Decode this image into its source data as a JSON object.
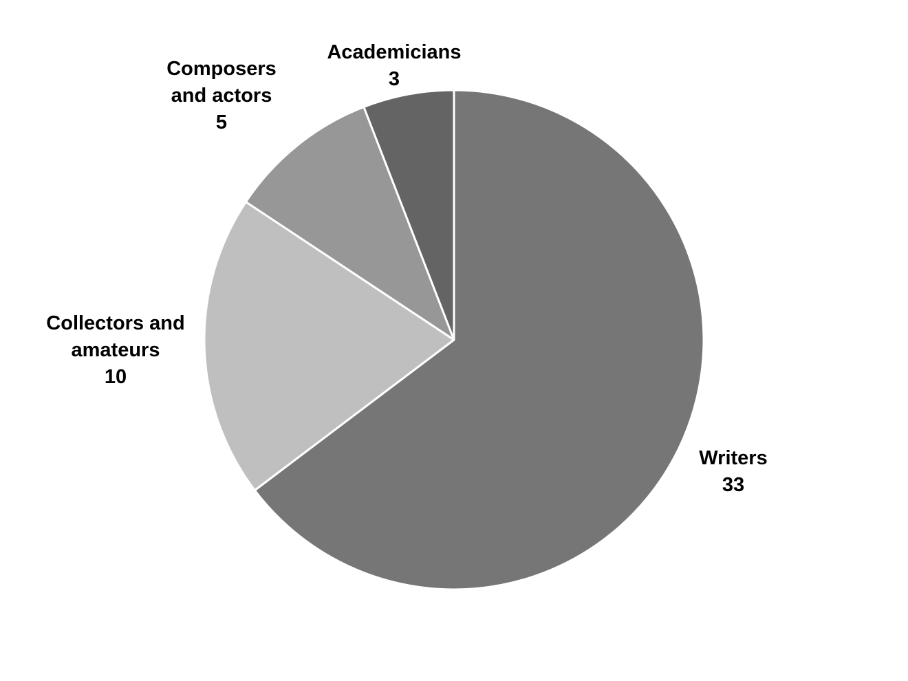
{
  "chart_data": {
    "type": "pie",
    "start_angle": "12 o'clock",
    "direction": "clockwise",
    "slices": [
      {
        "label_lines": [
          "Writers"
        ],
        "value": 33,
        "value_label": "33",
        "color": "#767676"
      },
      {
        "label_lines": [
          "Collectors and",
          "amateurs"
        ],
        "value": 10,
        "value_label": "10",
        "color": "#bfbfbf"
      },
      {
        "label_lines": [
          "Composers",
          "and actors"
        ],
        "value": 5,
        "value_label": "5",
        "color": "#979797"
      },
      {
        "label_lines": [
          "Academicians"
        ],
        "value": 3,
        "value_label": "3",
        "color": "#646464"
      }
    ],
    "legend": "none"
  }
}
